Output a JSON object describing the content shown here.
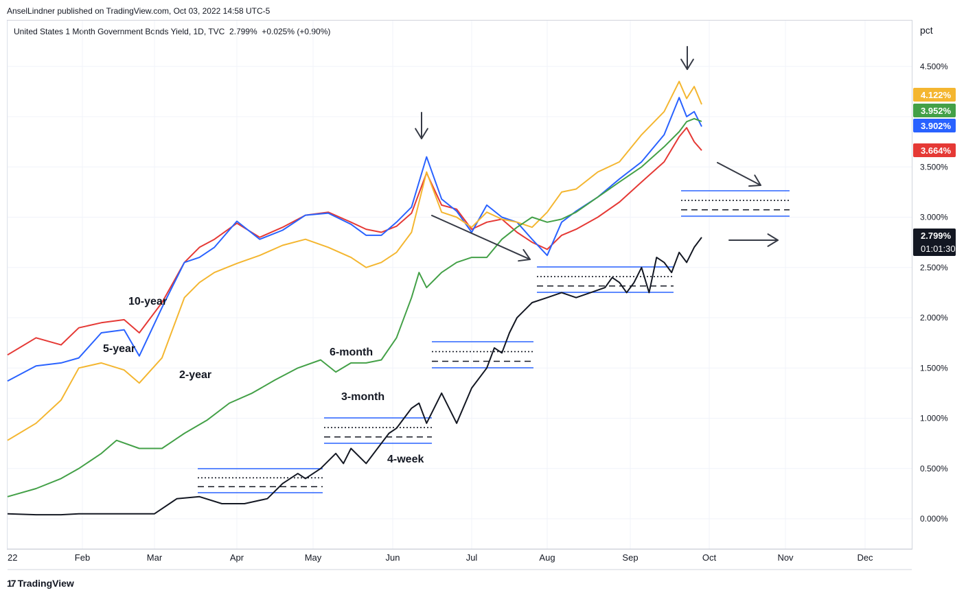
{
  "header": {
    "published": "AnselLindner published on TradingView.com, Oct 03, 2022 14:58 UTC-5",
    "legend": "United States 1 Month Government Bonds Yield, 1D, TVC  2.799%  +0.025% (+0.90%)",
    "unit": "pct"
  },
  "footer": {
    "logo_text": "TradingView"
  },
  "chart_data": {
    "type": "line",
    "title": "United States 1 Month Government Bonds Yield, 1D, TVC",
    "x_tick_labels": [
      "22",
      "Feb",
      "Mar",
      "Apr",
      "May",
      "Jun",
      "Jul",
      "Aug",
      "Sep",
      "Oct",
      "Nov",
      "Dec"
    ],
    "y_tick_labels": [
      "4.500%",
      "3.500%",
      "3.000%",
      "2.500%",
      "2.000%",
      "1.500%",
      "1.000%",
      "0.500%",
      "0.000%"
    ],
    "ylim": [
      -0.3,
      4.75
    ],
    "x_axis_note": "x values are trading-day index starting 2022-01-03 (month ticks at day 0, 21, 40, 62, 82, 103, 124, 144, 167, 188, 209, 230)",
    "series": [
      {
        "name": "10-year",
        "color": "#e53935",
        "last_value": "3.664%",
        "x": [
          0,
          8,
          15,
          20,
          26,
          32,
          36,
          42,
          48,
          52,
          56,
          62,
          68,
          74,
          80,
          86,
          92,
          96,
          100,
          104,
          108,
          112,
          116,
          120,
          124,
          128,
          132,
          136,
          140,
          144,
          148,
          152,
          158,
          164,
          170,
          176,
          180,
          182,
          184,
          186
        ],
        "values": [
          1.63,
          1.8,
          1.73,
          1.9,
          1.95,
          1.98,
          1.85,
          2.15,
          2.55,
          2.7,
          2.78,
          2.94,
          2.8,
          2.9,
          3.02,
          3.05,
          2.95,
          2.88,
          2.85,
          2.91,
          3.04,
          3.44,
          3.12,
          3.08,
          2.88,
          2.95,
          2.98,
          2.85,
          2.75,
          2.68,
          2.82,
          2.88,
          3.0,
          3.15,
          3.35,
          3.55,
          3.8,
          3.89,
          3.75,
          3.664
        ]
      },
      {
        "name": "5-year",
        "color": "#2962ff",
        "last_value": "3.902%",
        "x": [
          0,
          8,
          15,
          20,
          26,
          32,
          36,
          42,
          48,
          52,
          56,
          62,
          68,
          74,
          80,
          86,
          92,
          96,
          100,
          104,
          108,
          112,
          116,
          120,
          124,
          128,
          132,
          136,
          140,
          144,
          148,
          152,
          158,
          164,
          170,
          176,
          180,
          182,
          184,
          186
        ],
        "values": [
          1.37,
          1.52,
          1.55,
          1.6,
          1.85,
          1.88,
          1.62,
          2.1,
          2.55,
          2.6,
          2.7,
          2.96,
          2.78,
          2.87,
          3.02,
          3.04,
          2.93,
          2.82,
          2.82,
          2.95,
          3.1,
          3.6,
          3.18,
          3.06,
          2.85,
          3.12,
          3.0,
          2.95,
          2.78,
          2.62,
          2.95,
          3.06,
          3.2,
          3.38,
          3.55,
          3.82,
          4.19,
          4.0,
          4.05,
          3.902
        ]
      },
      {
        "name": "2-year",
        "color": "#f4b630",
        "last_value": "4.122%",
        "x": [
          0,
          8,
          15,
          20,
          26,
          32,
          36,
          42,
          48,
          52,
          56,
          62,
          68,
          74,
          80,
          86,
          92,
          96,
          100,
          104,
          108,
          112,
          116,
          120,
          124,
          128,
          132,
          136,
          140,
          144,
          148,
          152,
          158,
          164,
          170,
          176,
          180,
          182,
          184,
          186
        ],
        "values": [
          0.78,
          0.95,
          1.18,
          1.5,
          1.55,
          1.48,
          1.35,
          1.6,
          2.2,
          2.35,
          2.45,
          2.54,
          2.62,
          2.72,
          2.78,
          2.7,
          2.6,
          2.5,
          2.55,
          2.65,
          2.85,
          3.45,
          3.05,
          3.0,
          2.9,
          3.05,
          2.98,
          2.95,
          2.9,
          3.05,
          3.25,
          3.28,
          3.45,
          3.55,
          3.82,
          4.05,
          4.35,
          4.18,
          4.3,
          4.122
        ]
      },
      {
        "name": "6-month",
        "color": "#43a047",
        "last_value": "3.952%",
        "x": [
          0,
          8,
          15,
          20,
          26,
          30,
          36,
          42,
          48,
          54,
          60,
          66,
          72,
          78,
          84,
          88,
          92,
          96,
          100,
          104,
          108,
          110,
          112,
          116,
          120,
          124,
          128,
          132,
          136,
          140,
          144,
          148,
          152,
          158,
          164,
          170,
          176,
          180,
          182,
          184,
          186
        ],
        "values": [
          0.22,
          0.3,
          0.4,
          0.5,
          0.65,
          0.78,
          0.7,
          0.7,
          0.85,
          0.98,
          1.15,
          1.25,
          1.38,
          1.5,
          1.58,
          1.46,
          1.55,
          1.55,
          1.58,
          1.8,
          2.2,
          2.45,
          2.3,
          2.45,
          2.55,
          2.6,
          2.6,
          2.78,
          2.9,
          3.0,
          2.95,
          2.98,
          3.05,
          3.2,
          3.35,
          3.5,
          3.7,
          3.85,
          3.95,
          3.98,
          3.952
        ]
      },
      {
        "name": "4-week",
        "color": "#131722",
        "last_value": "2.799%",
        "x": [
          0,
          8,
          15,
          20,
          26,
          30,
          34,
          40,
          46,
          52,
          58,
          64,
          70,
          74,
          78,
          80,
          84,
          88,
          90,
          92,
          96,
          100,
          102,
          104,
          108,
          110,
          112,
          116,
          120,
          124,
          128,
          130,
          132,
          134,
          136,
          140,
          144,
          148,
          152,
          156,
          160,
          162,
          164,
          166,
          168,
          170,
          172,
          174,
          176,
          178,
          180,
          182,
          184,
          186
        ],
        "values": [
          0.05,
          0.04,
          0.04,
          0.05,
          0.05,
          0.05,
          0.05,
          0.05,
          0.2,
          0.22,
          0.15,
          0.15,
          0.2,
          0.35,
          0.45,
          0.4,
          0.5,
          0.65,
          0.55,
          0.7,
          0.55,
          0.75,
          0.85,
          0.9,
          1.1,
          1.15,
          0.95,
          1.25,
          0.95,
          1.3,
          1.5,
          1.7,
          1.65,
          1.85,
          2.0,
          2.15,
          2.2,
          2.25,
          2.2,
          2.25,
          2.3,
          2.4,
          2.35,
          2.25,
          2.35,
          2.5,
          2.25,
          2.6,
          2.55,
          2.45,
          2.65,
          2.55,
          2.7,
          2.799
        ]
      }
    ],
    "annotations": [
      {
        "text": "10-year"
      },
      {
        "text": "5-year"
      },
      {
        "text": "2-year"
      },
      {
        "text": "6-month"
      },
      {
        "text": "3-month"
      },
      {
        "text": "4-week"
      }
    ],
    "price_badges": [
      {
        "text": "4.122%",
        "color": "#f4b630"
      },
      {
        "text": "3.952%",
        "color": "#43a047"
      },
      {
        "text": "3.902%",
        "color": "#2962ff"
      },
      {
        "text": "3.664%",
        "color": "#e53935"
      },
      {
        "text": "2.799%",
        "sub": "01:01:30",
        "color": "#131722"
      }
    ],
    "grid": true
  }
}
